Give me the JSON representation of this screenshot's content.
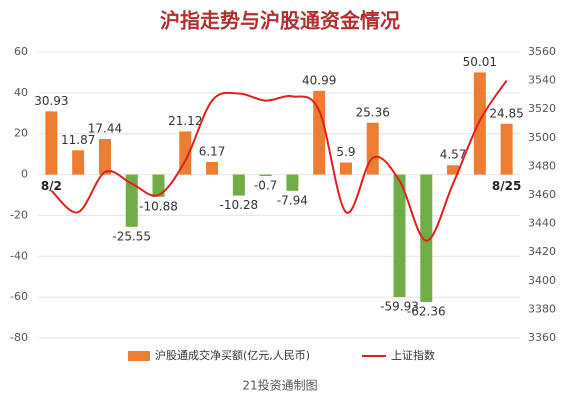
{
  "chart_data": {
    "type": "bar-line",
    "title": "沪指走势与沪股通资金情况",
    "footer": "21投资通制图",
    "categories": [
      "8/2",
      null,
      null,
      null,
      null,
      null,
      null,
      null,
      null,
      null,
      null,
      null,
      null,
      null,
      null,
      null,
      null,
      "8/25"
    ],
    "series": [
      {
        "name": "沪股通成交净买额(亿元,人民币)",
        "type": "bar",
        "color": "#ed7d31",
        "negative_color": "#70ad47",
        "values": [
          30.93,
          11.87,
          17.44,
          -25.55,
          -10.88,
          21.12,
          6.17,
          -10.28,
          -0.7,
          -7.94,
          40.99,
          5.9,
          25.36,
          -59.93,
          -62.36,
          4.57,
          50.01,
          24.85
        ]
      },
      {
        "name": "上证指数",
        "type": "line",
        "axis": "y2",
        "color": "#e02020",
        "values": [
          3463,
          3448,
          3476,
          3468,
          3460,
          3484,
          3526,
          3531,
          3526,
          3529,
          3519,
          3448,
          3486,
          3470,
          3428,
          3468,
          3512,
          3540
        ]
      }
    ],
    "ylim": [
      -80,
      60
    ],
    "yticks": [
      -80,
      -60,
      -40,
      -20,
      0,
      20,
      40,
      60
    ],
    "y2lim": [
      3360,
      3560
    ],
    "y2ticks": [
      3360,
      3380,
      3400,
      3420,
      3440,
      3460,
      3480,
      3500,
      3520,
      3540,
      3560
    ],
    "grid": true,
    "legend": "bottom"
  }
}
